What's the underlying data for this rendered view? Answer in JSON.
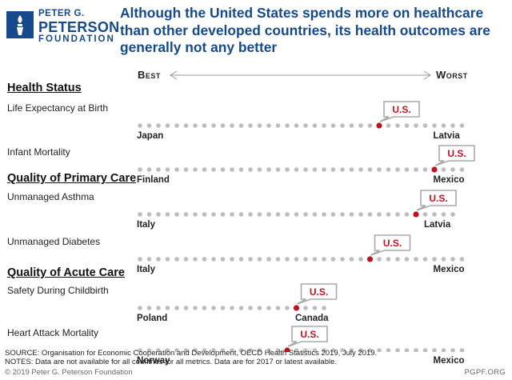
{
  "header": {
    "logo_line1": "PETER G.",
    "logo_line2": "PETERSON",
    "logo_line3": "FOUNDATION",
    "headline_line1": "Although the United States spends more on healthcare",
    "headline_line2": "than other developed countries, its health outcomes are",
    "headline_line3": "generally not any better"
  },
  "scale": {
    "best": "Best",
    "worst": "Worst"
  },
  "colors": {
    "brand": "#174a8b",
    "us_marker": "#c0111f",
    "dot": "#bdbdbd"
  },
  "chart_data": {
    "type": "dot-strip",
    "dots_per_row": 36,
    "highlight_label": "U.S.",
    "sections": [
      {
        "title": "Health Status",
        "metrics": [
          {
            "label": "Life Expectancy at Birth",
            "best_country": "Japan",
            "worst_country": "Latvia",
            "dots": 36,
            "us_rank": 27
          },
          {
            "label": "Infant Mortality",
            "best_country": "Finland",
            "worst_country": "Mexico",
            "dots": 36,
            "us_rank": 33
          }
        ]
      },
      {
        "title": "Quality of Primary Care",
        "metrics": [
          {
            "label": "Unmanaged Asthma",
            "best_country": "Italy",
            "worst_country": "Latvia",
            "dots": 35,
            "us_rank": 31
          },
          {
            "label": "Unmanaged Diabetes",
            "best_country": "Italy",
            "worst_country": "Mexico",
            "dots": 36,
            "us_rank": 26
          }
        ]
      },
      {
        "title": "Quality of Acute Care",
        "metrics": [
          {
            "label": "Safety During Childbirth",
            "best_country": "Poland",
            "worst_country": "Canada",
            "dots": 21,
            "us_rank": 18
          },
          {
            "label": "Heart Attack Mortality",
            "best_country": "Norway",
            "worst_country": "Mexico",
            "dots": 36,
            "us_rank": 17
          }
        ]
      }
    ]
  },
  "footer": {
    "source": "SOURCE: Organisation for Economic Cooperation and Development, OECD Health Statistics 2019, July 2019.",
    "notes": "NOTES: Data are not available for all countries for all metrics. Data are for 2017 or latest available.",
    "copyright": "© 2019 Peter G. Peterson Foundation",
    "site": "PGPF.ORG"
  }
}
